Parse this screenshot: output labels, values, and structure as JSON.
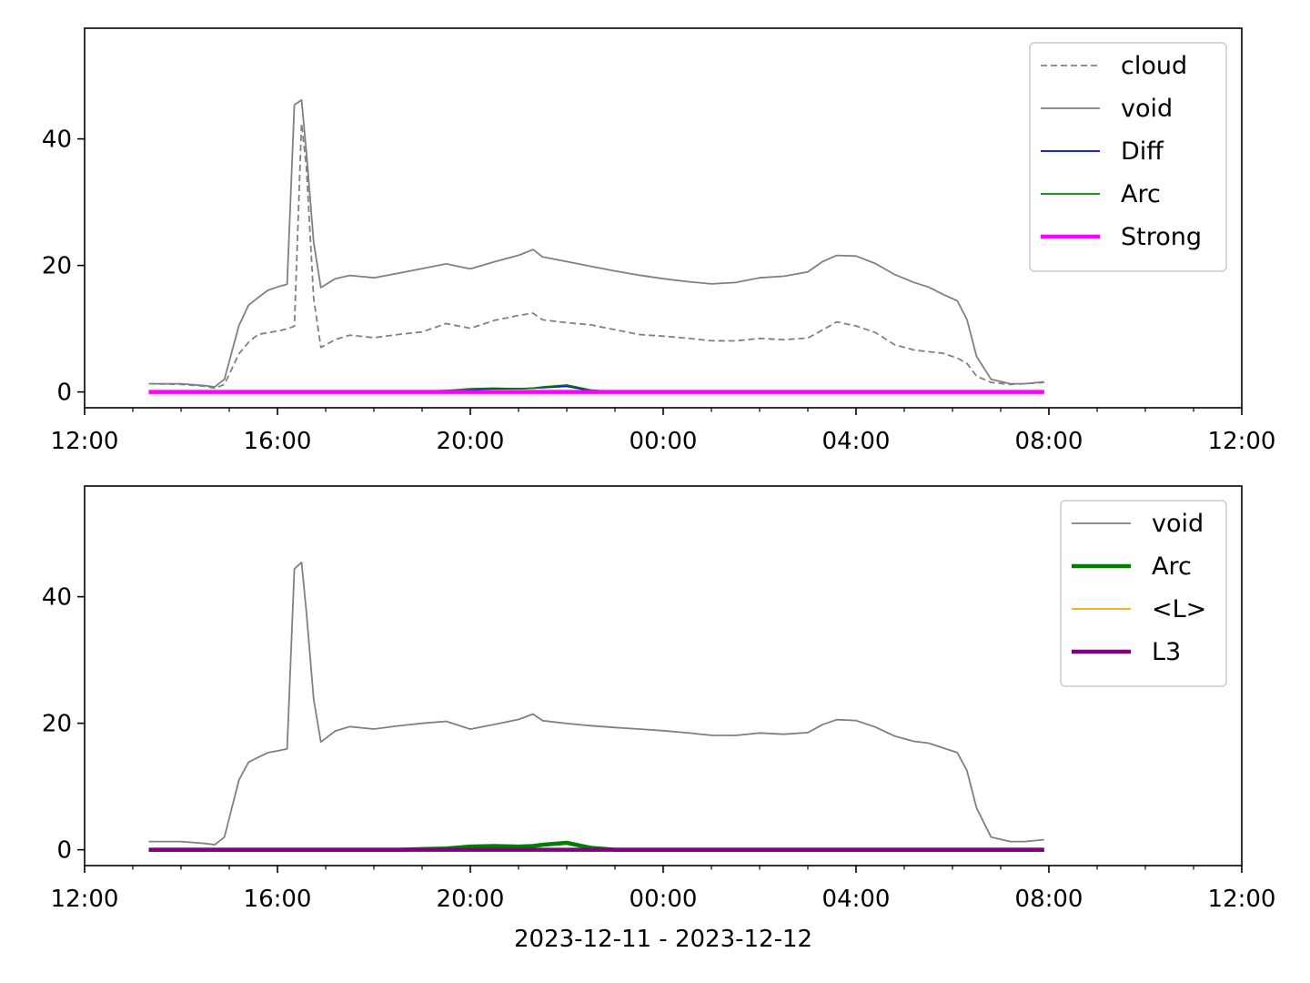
{
  "chart_data": [
    {
      "type": "line",
      "x_axis": {
        "unit": "time",
        "range": [
          "12:00",
          "12:00 (+1d)"
        ],
        "tick_labels": [
          "12:00",
          "16:00",
          "20:00",
          "00:00",
          "04:00",
          "08:00",
          "12:00"
        ],
        "minor_ticks_every_hours": 1
      },
      "y_axis": {
        "ylim": [
          -2.5,
          57.5
        ],
        "tick_values": [
          0,
          20,
          40
        ],
        "tick_labels": [
          "0",
          "20",
          "40"
        ]
      },
      "grid": false,
      "legend": {
        "placement": "upper right"
      },
      "x_hours": [
        13.33,
        14.0,
        14.5,
        14.7,
        14.9,
        15.2,
        15.4,
        15.6,
        15.8,
        16.0,
        16.2,
        16.35,
        16.5,
        16.6,
        16.75,
        16.9,
        17.2,
        17.5,
        18.0,
        18.5,
        19.0,
        19.5,
        20.0,
        20.5,
        21.0,
        21.3,
        21.5,
        22.0,
        22.5,
        23.0,
        23.5,
        24.0,
        24.5,
        25.0,
        25.5,
        26.0,
        26.5,
        27.0,
        27.3,
        27.6,
        28.0,
        28.4,
        28.8,
        29.2,
        29.5,
        29.8,
        30.1,
        30.3,
        30.5,
        30.8,
        31.2,
        31.5,
        31.9
      ],
      "series": [
        {
          "name": "cloud",
          "color": "#808080",
          "style": "dashed",
          "values": [
            1.3,
            1.2,
            0.9,
            0.6,
            1.2,
            5.5,
            7.5,
            9.0,
            9.5,
            10.0,
            10.5,
            11.0,
            43.0,
            36.0,
            15.0,
            7.0,
            8.0,
            8.5,
            8.0,
            8.5,
            9.0,
            10.5,
            10.0,
            11.5,
            12.5,
            13.0,
            12.0,
            11.5,
            11.0,
            10.0,
            9.0,
            8.5,
            8.0,
            7.5,
            7.5,
            8.0,
            8.0,
            8.5,
            10.0,
            11.5,
            11.0,
            10.0,
            8.0,
            7.0,
            6.5,
            6.0,
            5.0,
            4.0,
            2.5,
            1.5,
            1.2,
            1.3,
            1.5
          ]
        },
        {
          "name": "void",
          "color": "#808080",
          "style": "solid",
          "values": [
            1.3,
            1.3,
            1.0,
            0.8,
            2.0,
            10.5,
            13.5,
            14.5,
            15.5,
            16.0,
            16.5,
            45.0,
            46.0,
            38.0,
            24.0,
            17.0,
            18.5,
            19.0,
            18.5,
            19.0,
            19.5,
            20.0,
            19.0,
            20.0,
            21.0,
            22.0,
            21.0,
            20.5,
            20.0,
            19.5,
            19.0,
            18.5,
            18.0,
            17.5,
            17.5,
            18.0,
            18.0,
            18.5,
            20.0,
            21.0,
            21.0,
            20.0,
            18.5,
            17.5,
            17.0,
            16.0,
            15.0,
            12.0,
            6.0,
            2.0,
            1.3,
            1.3,
            1.6
          ]
        },
        {
          "name": "Diff",
          "color": "#0000ff",
          "style": "solid",
          "values": [
            0,
            0,
            0,
            0,
            0,
            0,
            0,
            0,
            0,
            0,
            0,
            0,
            0,
            0,
            0,
            0,
            0,
            0,
            0,
            0,
            0.1,
            0.2,
            0.4,
            0.5,
            0.5,
            0.6,
            0.7,
            0.9,
            0.2,
            0,
            0,
            0,
            0,
            0,
            0,
            0,
            0,
            0,
            0,
            0,
            0,
            0,
            0,
            0,
            0,
            0,
            0,
            0,
            0,
            0,
            0,
            0,
            0
          ]
        },
        {
          "name": "Arc",
          "color": "#008000",
          "style": "solid",
          "values": [
            0,
            0,
            0,
            0,
            0,
            0,
            0,
            0,
            0,
            0,
            0,
            0,
            0,
            0,
            0,
            0,
            0,
            0,
            0,
            0,
            0.1,
            0.2,
            0.5,
            0.6,
            0.5,
            0.6,
            0.8,
            1.1,
            0.3,
            0,
            0,
            0,
            0,
            0,
            0,
            0,
            0,
            0,
            0,
            0,
            0,
            0,
            0,
            0,
            0,
            0,
            0,
            0,
            0,
            0,
            0,
            0,
            0
          ]
        },
        {
          "name": "Strong",
          "color": "#ff00ff",
          "style": "solid-thick",
          "values": [
            0,
            0,
            0,
            0,
            0,
            0,
            0,
            0,
            0,
            0,
            0,
            0,
            0,
            0,
            0,
            0,
            0,
            0,
            0,
            0,
            0,
            0,
            0,
            0,
            0,
            0,
            0,
            0,
            0,
            0,
            0,
            0,
            0,
            0,
            0,
            0,
            0,
            0,
            0,
            0,
            0,
            0,
            0,
            0,
            0,
            0,
            0,
            0,
            0,
            0,
            0,
            0,
            0
          ]
        }
      ]
    },
    {
      "type": "line",
      "x_axis": {
        "unit": "time",
        "range": [
          "12:00",
          "12:00 (+1d)"
        ],
        "tick_labels": [
          "12:00",
          "16:00",
          "20:00",
          "00:00",
          "04:00",
          "08:00",
          "12:00"
        ],
        "minor_ticks_every_hours": 1
      },
      "xlabel": "2023-12-11 - 2023-12-12",
      "y_axis": {
        "ylim": [
          -2.5,
          57.5
        ],
        "tick_values": [
          0,
          20,
          40
        ],
        "tick_labels": [
          "0",
          "20",
          "40"
        ]
      },
      "grid": false,
      "legend": {
        "placement": "upper right"
      },
      "x_hours": [
        13.33,
        14.0,
        14.5,
        14.7,
        14.9,
        15.2,
        15.4,
        15.6,
        15.8,
        16.0,
        16.2,
        16.35,
        16.5,
        16.6,
        16.75,
        16.9,
        17.2,
        17.5,
        18.0,
        18.5,
        19.0,
        19.5,
        20.0,
        20.5,
        21.0,
        21.3,
        21.5,
        22.0,
        22.5,
        23.0,
        23.5,
        24.0,
        24.5,
        25.0,
        25.5,
        26.0,
        26.5,
        27.0,
        27.3,
        27.6,
        28.0,
        28.4,
        28.8,
        29.2,
        29.5,
        29.8,
        30.1,
        30.3,
        30.5,
        30.8,
        31.2,
        31.5,
        31.9
      ],
      "series": [
        {
          "name": "void",
          "color": "#808080",
          "style": "solid",
          "values": [
            1.3,
            1.3,
            1.0,
            0.8,
            2.0,
            10.5,
            13.5,
            14.5,
            15.5,
            16.0,
            16.5,
            45.0,
            46.0,
            38.0,
            24.0,
            17.0,
            18.5,
            19.0,
            18.5,
            19.0,
            19.5,
            20.0,
            19.0,
            20.0,
            21.0,
            22.0,
            21.0,
            20.5,
            20.0,
            19.5,
            19.0,
            18.5,
            18.0,
            17.5,
            17.5,
            18.0,
            18.0,
            18.5,
            20.0,
            21.0,
            21.0,
            20.0,
            18.5,
            17.5,
            17.0,
            16.0,
            15.0,
            12.0,
            6.0,
            2.0,
            1.3,
            1.3,
            1.6
          ]
        },
        {
          "name": "Arc",
          "color": "#008000",
          "style": "solid-thick",
          "values": [
            0,
            0,
            0,
            0,
            0,
            0,
            0,
            0,
            0,
            0,
            0,
            0,
            0,
            0,
            0,
            0,
            0,
            0,
            0,
            0,
            0.1,
            0.2,
            0.5,
            0.6,
            0.5,
            0.6,
            0.8,
            1.1,
            0.3,
            0,
            0,
            0,
            0,
            0,
            0,
            0,
            0,
            0,
            0,
            0,
            0,
            0,
            0,
            0,
            0,
            0,
            0,
            0,
            0,
            0,
            0,
            0,
            0
          ]
        },
        {
          "name": "<L>",
          "color": "#ffa500",
          "style": "solid",
          "values": [
            0,
            0,
            0,
            0,
            0,
            0,
            0,
            0,
            0,
            0,
            0,
            0,
            0,
            0,
            0,
            0,
            0,
            0,
            0,
            0,
            0,
            0,
            0,
            0,
            0,
            0,
            0,
            0,
            0,
            0,
            0,
            0,
            0,
            0,
            0,
            0,
            0,
            0,
            0,
            0,
            0,
            0,
            0,
            0,
            0,
            0,
            0,
            0,
            0,
            0,
            0,
            0,
            0
          ]
        },
        {
          "name": "L3",
          "color": "#800080",
          "style": "solid-thick",
          "values": [
            0,
            0,
            0,
            0,
            0,
            0,
            0,
            0,
            0,
            0,
            0,
            0,
            0,
            0,
            0,
            0,
            0,
            0,
            0,
            0,
            0,
            0,
            0,
            0,
            0,
            0,
            0,
            0,
            0,
            0,
            0,
            0,
            0,
            0,
            0,
            0,
            0,
            0,
            0,
            0,
            0,
            0,
            0,
            0,
            0,
            0,
            0,
            0,
            0,
            0,
            0,
            0,
            0
          ]
        }
      ]
    }
  ]
}
